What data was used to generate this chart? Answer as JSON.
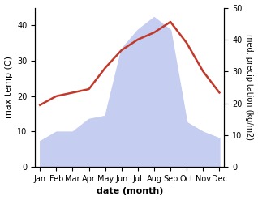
{
  "months": [
    "Jan",
    "Feb",
    "Mar",
    "Apr",
    "May",
    "Jun",
    "Jul",
    "Aug",
    "Sep",
    "Oct",
    "Nov",
    "Dec"
  ],
  "x": [
    0,
    1,
    2,
    3,
    4,
    5,
    6,
    7,
    8,
    9,
    10,
    11
  ],
  "temperature": [
    17.5,
    20,
    21,
    22,
    28,
    33,
    36,
    38,
    41,
    35,
    27,
    21
  ],
  "precipitation": [
    8,
    11,
    11,
    15,
    16,
    37,
    43,
    47,
    43,
    14,
    11,
    9
  ],
  "temp_color": "#c0392b",
  "precip_fill_color": "#c5cdf0",
  "temp_ylim": [
    0,
    45
  ],
  "precip_ylim": [
    0,
    50
  ],
  "temp_yticks": [
    0,
    10,
    20,
    30,
    40
  ],
  "precip_yticks": [
    0,
    10,
    20,
    30,
    40,
    50
  ],
  "xlabel": "date (month)",
  "ylabel_left": "max temp (C)",
  "ylabel_right": "med. precipitation (kg/m2)",
  "line_width": 1.8
}
